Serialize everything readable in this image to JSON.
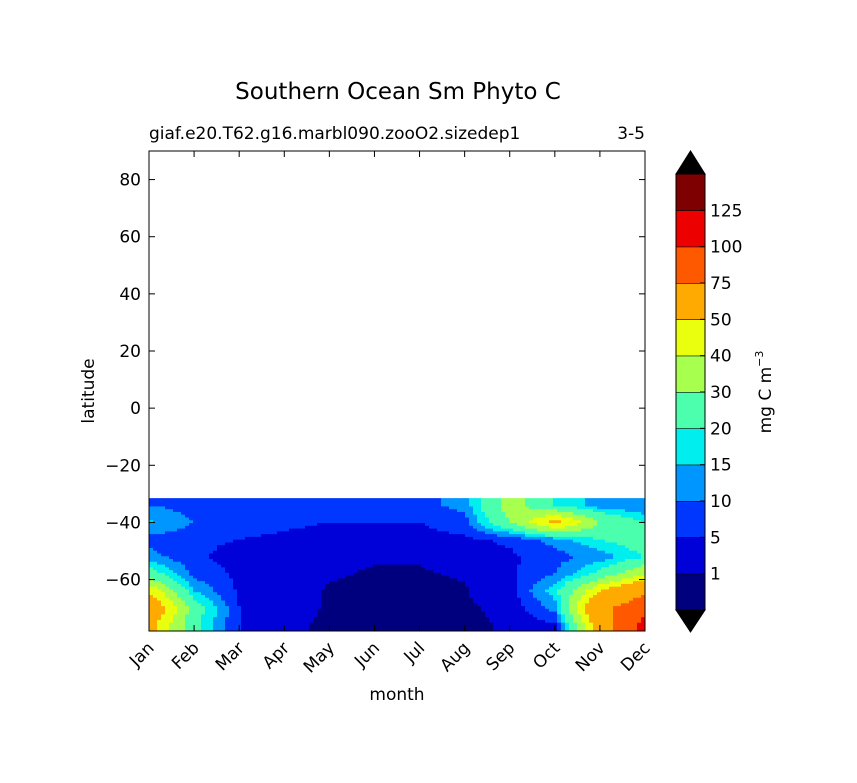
{
  "chart_data": {
    "type": "heatmap",
    "title": "Southern Ocean Sm Phyto C",
    "subtitle_left": "giaf.e20.T62.g16.marbl090.zooO2.sizedep1",
    "subtitle_right": "3-5",
    "xlabel": "month",
    "ylabel": "latitude",
    "x_categories": [
      "Jan",
      "Feb",
      "Mar",
      "Apr",
      "May",
      "Jun",
      "Jul",
      "Aug",
      "Sep",
      "Oct",
      "Nov",
      "Dec"
    ],
    "y_ticks": [
      80,
      60,
      40,
      20,
      0,
      -20,
      -40,
      -60
    ],
    "y_tick_labels": [
      "80",
      "60",
      "40",
      "20",
      "0",
      "−20",
      "−40",
      "−60"
    ],
    "ylim": [
      -78,
      90
    ],
    "data_lat_range": [
      -78,
      -31.5
    ],
    "colorbar": {
      "label": "mg C m",
      "label_sup": "−3",
      "levels": [
        0,
        1,
        5,
        10,
        15,
        20,
        30,
        40,
        50,
        75,
        100,
        125,
        150
      ],
      "tick_labels": [
        "1",
        "5",
        "10",
        "15",
        "20",
        "30",
        "40",
        "50",
        "75",
        "100",
        "125"
      ],
      "colors": [
        "#00007f",
        "#0000d9",
        "#0037ff",
        "#0096ff",
        "#00eeee",
        "#4bffad",
        "#a7ff4e",
        "#eaff0d",
        "#ffaa00",
        "#ff5900",
        "#ec0000",
        "#7f0000"
      ],
      "extend_color": "#000000"
    },
    "lat_bands": [
      -76,
      -70,
      -64,
      -58,
      -52,
      -46,
      -40,
      -34
    ],
    "grid": [
      [
        55,
        22,
        5,
        1.5,
        0.6,
        0.5,
        0.5,
        0.6,
        1.2,
        4,
        60,
        110
      ],
      [
        65,
        25,
        5,
        2,
        0.7,
        0.5,
        0.5,
        0.7,
        1.5,
        12,
        70,
        90
      ],
      [
        48,
        15,
        4,
        2,
        0.8,
        0.6,
        0.6,
        0.8,
        3,
        18,
        50,
        70
      ],
      [
        25,
        8,
        4,
        2,
        1.2,
        0.8,
        0.8,
        1.2,
        4,
        10,
        22,
        40
      ],
      [
        12,
        6,
        3,
        2,
        1.5,
        1.2,
        1.2,
        2,
        4,
        8,
        12,
        20
      ],
      [
        8,
        6,
        5,
        4,
        3,
        3,
        3,
        4,
        6,
        12,
        20,
        25
      ],
      [
        16,
        10,
        7,
        6,
        5,
        5,
        5,
        8,
        30,
        55,
        30,
        20
      ],
      [
        10,
        8,
        8,
        8,
        7,
        7,
        8,
        12,
        35,
        20,
        12,
        10
      ]
    ]
  }
}
